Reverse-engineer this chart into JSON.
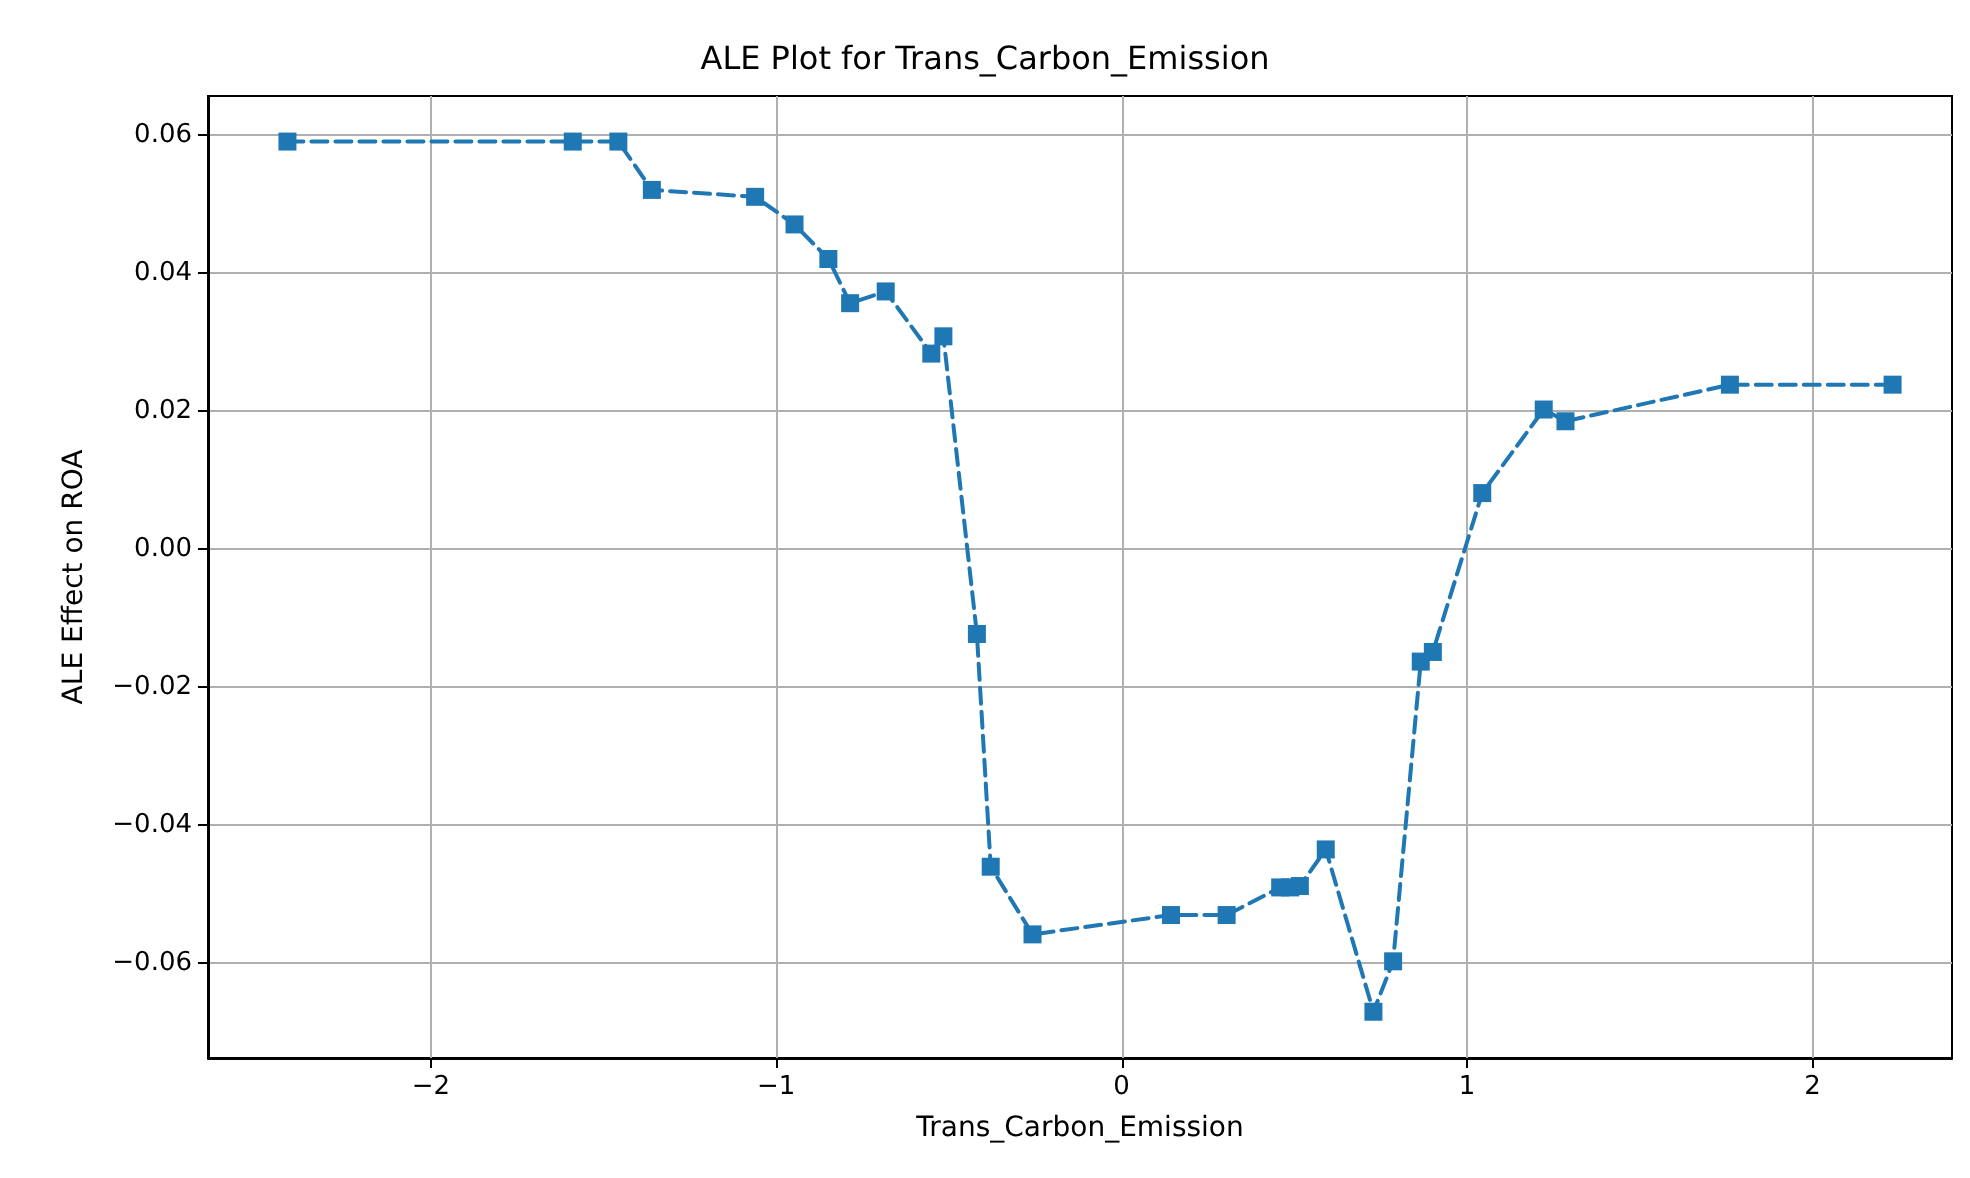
{
  "chart_data": {
    "type": "line",
    "title": "ALE Plot for Trans_Carbon_Emission",
    "xlabel": "Trans_Carbon_Emission",
    "ylabel": "ALE Effect on ROA",
    "x": [
      -2.415,
      -1.589,
      -1.457,
      -1.36,
      -1.061,
      -0.947,
      -0.849,
      -0.786,
      -0.683,
      -0.551,
      -0.516,
      -0.419,
      -0.379,
      -0.258,
      0.143,
      0.304,
      0.459,
      0.488,
      0.516,
      0.591,
      0.729,
      0.786,
      0.866,
      0.901,
      1.044,
      1.222,
      1.285,
      1.761,
      2.232
    ],
    "series": [
      {
        "color": "#1f77b4",
        "values": [
          0.059,
          0.059,
          0.059,
          0.052,
          0.051,
          0.047,
          0.042,
          0.0356,
          0.0373,
          0.0283,
          0.0308,
          -0.0123,
          -0.046,
          -0.0558,
          -0.053,
          -0.053,
          -0.049,
          -0.049,
          -0.0488,
          -0.0435,
          -0.067,
          -0.0597,
          -0.0163,
          -0.0149,
          0.0081,
          0.0202,
          0.0185,
          0.0238,
          0.0238
        ]
      }
    ],
    "xlim": [
      -2.645,
      2.404
    ],
    "xticks": [
      -2,
      -1,
      0,
      1,
      2
    ],
    "ylim": [
      -0.0737,
      0.0656
    ],
    "yticks": [
      {
        "value": -0.06,
        "label": "−0.06"
      },
      {
        "value": -0.04,
        "label": "−0.04"
      },
      {
        "value": -0.02,
        "label": "−0.02"
      },
      {
        "value": 0,
        "label": "0.00"
      },
      {
        "value": 0.02,
        "label": "0.02"
      },
      {
        "value": 0.04,
        "label": "0.04"
      },
      {
        "value": 0.06,
        "label": "0.06"
      }
    ],
    "grid": true,
    "marker": "square",
    "line_style": "dashed"
  }
}
